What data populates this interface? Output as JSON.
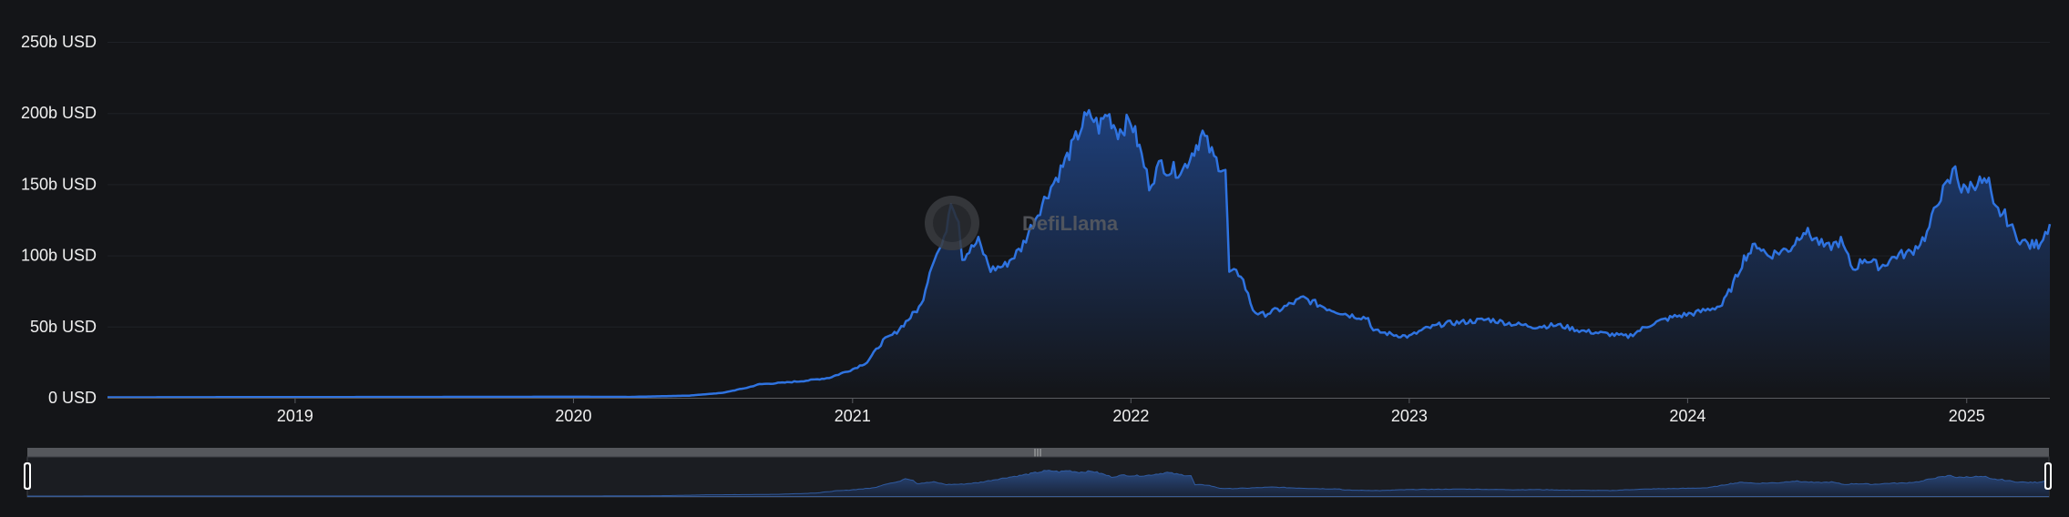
{
  "watermark": "DefiLlama",
  "chart_data": {
    "type": "area",
    "title": "",
    "xlabel": "",
    "ylabel": "",
    "y_ticks": [
      "0 USD",
      "50b USD",
      "100b USD",
      "150b USD",
      "200b USD",
      "250b USD"
    ],
    "x_ticks": [
      "2019",
      "2020",
      "2021",
      "2022",
      "2023",
      "2024",
      "2025"
    ],
    "ylim": [
      0,
      250
    ],
    "xlim": [
      "2018-04-30",
      "2025-04-20"
    ],
    "y_unit": "b USD",
    "grid": "horizontal",
    "colors": {
      "line": "#2f73e0",
      "fill_top": "#1e3f7a",
      "fill_bottom": "#141518",
      "background": "#141518"
    },
    "series": [
      {
        "points": [
          [
            "2018-04-30",
            0.3
          ],
          [
            "2018-12-31",
            0.5
          ],
          [
            "2019-06-30",
            0.6
          ],
          [
            "2019-12-31",
            0.7
          ],
          [
            "2020-03-15",
            0.6
          ],
          [
            "2020-06-01",
            1.5
          ],
          [
            "2020-07-15",
            3.5
          ],
          [
            "2020-08-15",
            7
          ],
          [
            "2020-09-01",
            9.5
          ],
          [
            "2020-10-01",
            10.5
          ],
          [
            "2020-11-01",
            12
          ],
          [
            "2020-12-01",
            14
          ],
          [
            "2021-01-01",
            20
          ],
          [
            "2021-01-20",
            25
          ],
          [
            "2021-02-10",
            40
          ],
          [
            "2021-02-25",
            45
          ],
          [
            "2021-03-15",
            55
          ],
          [
            "2021-04-01",
            65
          ],
          [
            "2021-04-15",
            95
          ],
          [
            "2021-05-01",
            110
          ],
          [
            "2021-05-10",
            140
          ],
          [
            "2021-05-20",
            125
          ],
          [
            "2021-05-25",
            98
          ],
          [
            "2021-06-15",
            110
          ],
          [
            "2021-07-01",
            90
          ],
          [
            "2021-07-20",
            93
          ],
          [
            "2021-08-10",
            105
          ],
          [
            "2021-09-01",
            130
          ],
          [
            "2021-09-15",
            145
          ],
          [
            "2021-10-01",
            160
          ],
          [
            "2021-10-15",
            175
          ],
          [
            "2021-11-01",
            195
          ],
          [
            "2021-11-10",
            198
          ],
          [
            "2021-11-20",
            190
          ],
          [
            "2021-12-01",
            200
          ],
          [
            "2021-12-15",
            187
          ],
          [
            "2022-01-01",
            195
          ],
          [
            "2022-01-15",
            170
          ],
          [
            "2022-01-25",
            150
          ],
          [
            "2022-02-10",
            165
          ],
          [
            "2022-02-20",
            160
          ],
          [
            "2022-03-10",
            160
          ],
          [
            "2022-03-25",
            175
          ],
          [
            "2022-04-05",
            185
          ],
          [
            "2022-04-20",
            168
          ],
          [
            "2022-05-05",
            160
          ],
          [
            "2022-05-10",
            88
          ],
          [
            "2022-05-25",
            87
          ],
          [
            "2022-06-10",
            62
          ],
          [
            "2022-06-20",
            58
          ],
          [
            "2022-07-15",
            62
          ],
          [
            "2022-08-15",
            70
          ],
          [
            "2022-09-15",
            63
          ],
          [
            "2022-10-15",
            58
          ],
          [
            "2022-11-08",
            56
          ],
          [
            "2022-11-15",
            47
          ],
          [
            "2022-12-15",
            44
          ],
          [
            "2023-01-01",
            43
          ],
          [
            "2023-01-20",
            48
          ],
          [
            "2023-02-15",
            52
          ],
          [
            "2023-03-10",
            53
          ],
          [
            "2023-04-15",
            55
          ],
          [
            "2023-05-15",
            52
          ],
          [
            "2023-06-15",
            50
          ],
          [
            "2023-07-15",
            51
          ],
          [
            "2023-08-15",
            47
          ],
          [
            "2023-09-15",
            45
          ],
          [
            "2023-10-15",
            43
          ],
          [
            "2023-11-15",
            52
          ],
          [
            "2023-12-15",
            57
          ],
          [
            "2024-01-15",
            60
          ],
          [
            "2024-02-15",
            65
          ],
          [
            "2024-03-01",
            80
          ],
          [
            "2024-03-15",
            98
          ],
          [
            "2024-04-01",
            108
          ],
          [
            "2024-04-15",
            100
          ],
          [
            "2024-05-15",
            105
          ],
          [
            "2024-06-01",
            118
          ],
          [
            "2024-06-15",
            112
          ],
          [
            "2024-07-01",
            105
          ],
          [
            "2024-07-20",
            110
          ],
          [
            "2024-08-05",
            90
          ],
          [
            "2024-08-20",
            98
          ],
          [
            "2024-09-10",
            92
          ],
          [
            "2024-10-01",
            100
          ],
          [
            "2024-10-20",
            102
          ],
          [
            "2024-11-10",
            115
          ],
          [
            "2024-11-25",
            140
          ],
          [
            "2024-12-10",
            152
          ],
          [
            "2024-12-17",
            163
          ],
          [
            "2024-12-25",
            145
          ],
          [
            "2025-01-15",
            152
          ],
          [
            "2025-01-30",
            150
          ],
          [
            "2025-02-05",
            133
          ],
          [
            "2025-02-20",
            128
          ],
          [
            "2025-03-05",
            115
          ],
          [
            "2025-03-15",
            110
          ],
          [
            "2025-03-25",
            107
          ],
          [
            "2025-04-05",
            108
          ],
          [
            "2025-04-20",
            122
          ]
        ]
      }
    ]
  }
}
